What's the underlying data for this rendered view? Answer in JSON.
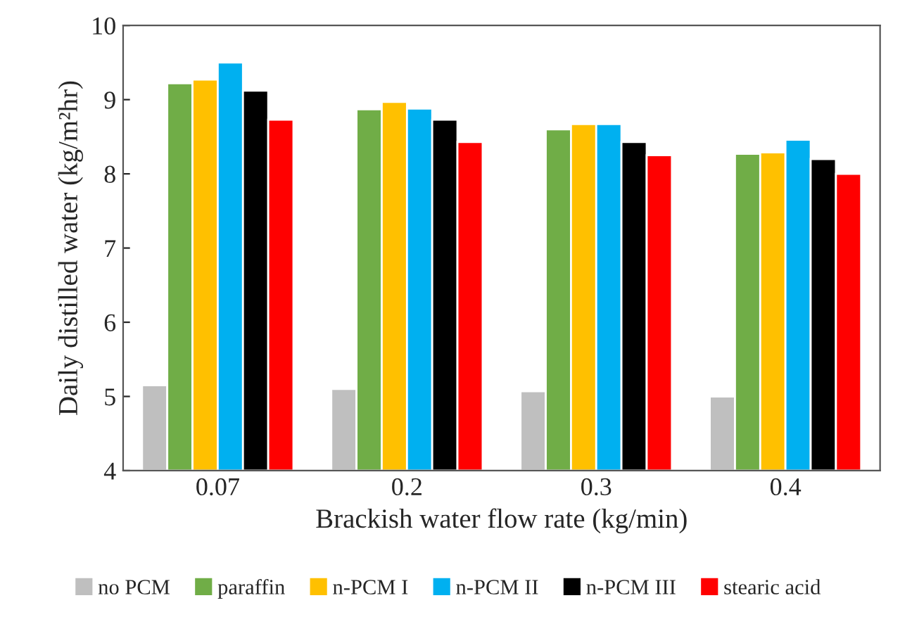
{
  "chart_data": {
    "type": "bar",
    "xlabel": "Brackish water flow rate (kg/min)",
    "ylabel": "Daily distilled water (kg/m²hr)",
    "categories": [
      "0.07",
      "0.2",
      "0.3",
      "0.4"
    ],
    "series": [
      {
        "name": "no PCM",
        "color": "#bfbfbf",
        "values": [
          5.15,
          5.1,
          5.07,
          5.0
        ]
      },
      {
        "name": "paraffin",
        "color": "#70ad47",
        "values": [
          9.22,
          8.87,
          8.6,
          8.27
        ]
      },
      {
        "name": "n-PCM I",
        "color": "#ffc000",
        "values": [
          9.27,
          8.97,
          8.67,
          8.29
        ]
      },
      {
        "name": "n-PCM II",
        "color": "#00b0f0",
        "values": [
          9.5,
          8.88,
          8.67,
          8.46
        ]
      },
      {
        "name": "n-PCM III",
        "color": "#000000",
        "values": [
          9.12,
          8.73,
          8.43,
          8.2
        ]
      },
      {
        "name": "stearic acid",
        "color": "#ff0000",
        "values": [
          8.73,
          8.43,
          8.25,
          8.0
        ]
      }
    ],
    "ylim": [
      4,
      10
    ],
    "yticks": [
      4,
      5,
      6,
      7,
      8,
      9,
      10
    ],
    "grid": false,
    "legend": "bottom"
  }
}
